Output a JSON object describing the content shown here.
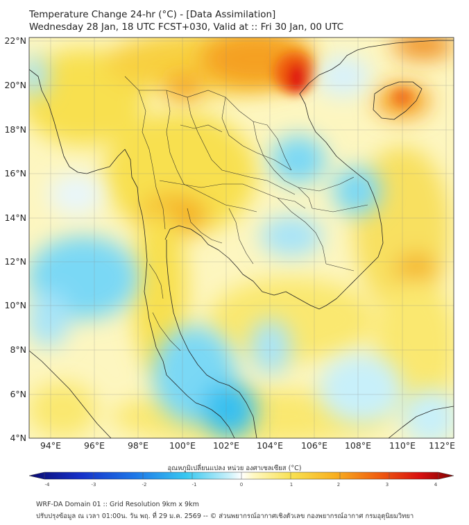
{
  "title": "Temperature Change 24-hr (°C) - [Data Assimilation]",
  "subtitle": "Wednesday 28 Jan, 18 UTC FCST+030, Valid at :: Fri 30 Jan, 00 UTC",
  "lat_labels": [
    "22°N",
    "20°N",
    "18°N",
    "16°N",
    "14°N",
    "12°N",
    "10°N",
    "8°N",
    "6°N",
    "4°N"
  ],
  "lon_labels": [
    "94°E",
    "96°E",
    "98°E",
    "100°E",
    "102°E",
    "104°E",
    "106°E",
    "108°E",
    "110°E",
    "112°E"
  ],
  "colorbar": {
    "title": "อุณหภูมิเปลี่ยนแปลง หน่วย องศาเซลเซียส (°C)",
    "ticks": [
      "-4",
      "-3",
      "-2",
      "-1",
      "0",
      "1",
      "2",
      "3",
      "4"
    ],
    "min": -4,
    "max": 4
  },
  "footer_line1": "WRF-DA Domain 01 :: Grid Resolution 9km x 9km",
  "footer_line2": "ปรับปรุงข้อมูล ณ เวลา 01:00น. วัน พฤ. ที่ 29 ม.ค. 2569 -- © ส่วนพยากรณ์อากาศเชิงตัวเลข กองพยากรณ์อากาศ กรมอุตุนิยมวิทยา",
  "colors": {
    "cold": "#2ec4f0",
    "neutral": "#ffffff",
    "warm": "#f8e050",
    "hot": "#f07010",
    "hottest": "#e00000"
  }
}
